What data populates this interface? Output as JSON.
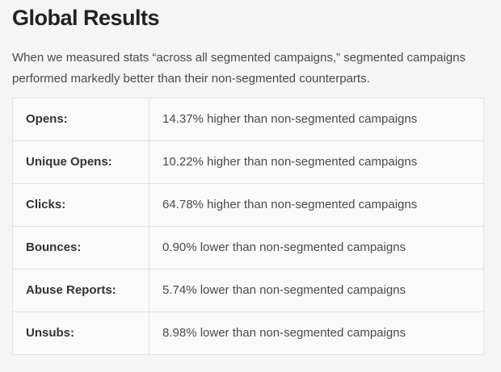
{
  "page": {
    "title": "Global Results",
    "intro": "When we measured stats “across all segmented campaigns,” segmented campaigns performed markedly better than their non-segmented counterparts."
  },
  "table": {
    "rows": [
      {
        "label": "Opens:",
        "value": "14.37% higher than non-segmented campaigns"
      },
      {
        "label": "Unique Opens:",
        "value": "10.22% higher than non-segmented campaigns"
      },
      {
        "label": "Clicks:",
        "value": "64.78% higher than non-segmented campaigns"
      },
      {
        "label": "Bounces:",
        "value": "0.90% lower than non-segmented campaigns"
      },
      {
        "label": "Abuse Reports:",
        "value": "5.74% lower than non-segmented campaigns"
      },
      {
        "label": "Unsubs:",
        "value": "8.98% lower than non-segmented campaigns"
      }
    ]
  },
  "colors": {
    "page_background": "#f5f5f6",
    "table_background": "#fafafa",
    "table_border": "#e2e2e2",
    "title_text": "#222222",
    "body_text": "#4a4a4a",
    "label_text": "#333333"
  }
}
